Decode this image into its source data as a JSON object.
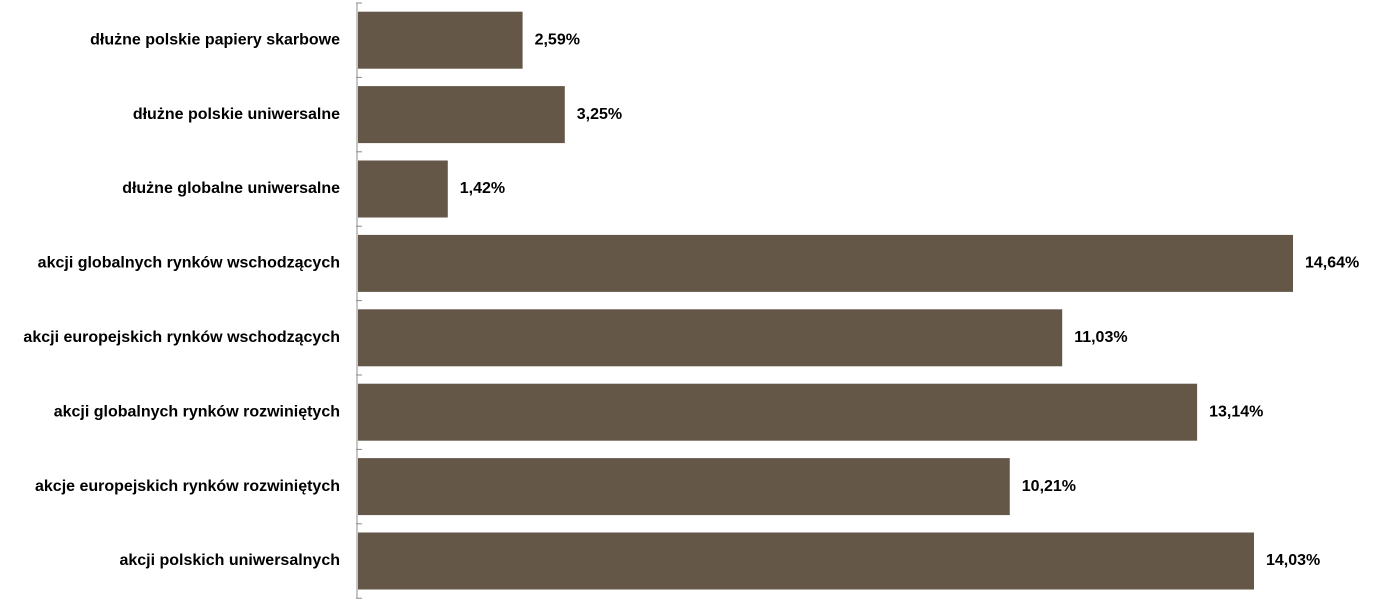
{
  "chart_data": {
    "type": "bar",
    "orientation": "horizontal",
    "categories": [
      "dłużne polskie papiery skarbowe",
      "dłużne polskie uniwersalne",
      "dłużne globalne uniwersalne",
      "akcji globalnych rynków wschodzących",
      "akcji europejskich rynków wschodzących",
      "akcji globalnych rynków rozwiniętych",
      "akcje europejskich rynków rozwiniętych",
      "akcji polskich uniwersalnych"
    ],
    "values": [
      2.59,
      3.25,
      1.42,
      14.64,
      11.03,
      13.14,
      10.21,
      14.03
    ],
    "value_labels": [
      "2,59%",
      "3,25%",
      "1,42%",
      "14,64%",
      "11,03%",
      "13,14%",
      "10,21%",
      "14,03%"
    ],
    "bar_color": "#645747",
    "xlim": [
      0,
      14.64
    ],
    "grid": false,
    "legend": "none"
  }
}
